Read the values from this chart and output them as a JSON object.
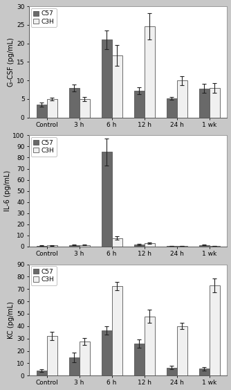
{
  "categories": [
    "Control",
    "3 h",
    "6 h",
    "12 h",
    "24 h",
    "1 wk"
  ],
  "panels": [
    {
      "ylabel": "G-CSF (pg/mL)",
      "ylim": [
        0,
        30
      ],
      "yticks": [
        0,
        5,
        10,
        15,
        20,
        25,
        30
      ],
      "c57_values": [
        3.5,
        8.0,
        21.0,
        7.2,
        5.2,
        7.8
      ],
      "c3h_values": [
        5.0,
        5.0,
        16.8,
        24.6,
        10.0,
        7.9
      ],
      "c57_errors": [
        0.5,
        0.9,
        2.5,
        0.9,
        0.4,
        1.2
      ],
      "c3h_errors": [
        0.4,
        0.5,
        2.8,
        3.5,
        1.2,
        1.3
      ]
    },
    {
      "ylabel": "IL-6 (pg/mL)",
      "ylim": [
        0,
        100
      ],
      "yticks": [
        0,
        10,
        20,
        30,
        40,
        50,
        60,
        70,
        80,
        90,
        100
      ],
      "c57_values": [
        0.8,
        1.5,
        85.0,
        2.0,
        0.5,
        1.5
      ],
      "c3h_values": [
        1.0,
        1.5,
        7.5,
        3.0,
        0.5,
        0.5
      ],
      "c57_errors": [
        0.3,
        0.5,
        12.0,
        0.7,
        0.2,
        0.4
      ],
      "c3h_errors": [
        0.3,
        0.4,
        1.5,
        0.8,
        0.2,
        0.2
      ]
    },
    {
      "ylabel": "KC (pg/mL)",
      "ylim": [
        0,
        90
      ],
      "yticks": [
        0,
        10,
        20,
        30,
        40,
        50,
        60,
        70,
        80,
        90
      ],
      "c57_values": [
        4.0,
        14.5,
        36.5,
        26.0,
        6.5,
        5.5
      ],
      "c3h_values": [
        32.0,
        27.5,
        72.5,
        48.0,
        40.0,
        73.0
      ],
      "c57_errors": [
        1.2,
        4.0,
        3.5,
        3.5,
        1.5,
        1.5
      ],
      "c3h_errors": [
        3.5,
        3.0,
        3.5,
        5.5,
        2.5,
        5.5
      ]
    }
  ],
  "c57_color": "#696969",
  "c3h_color": "#f0f0f0",
  "bar_edge_color": "#555555",
  "fig_facecolor": "#c8c8c8",
  "ax_facecolor": "#ffffff",
  "legend_labels": [
    "C57",
    "C3H"
  ],
  "bar_width": 0.32,
  "fontsize_ticks": 6.5,
  "fontsize_ylabel": 7.0,
  "fontsize_legend": 6.5
}
